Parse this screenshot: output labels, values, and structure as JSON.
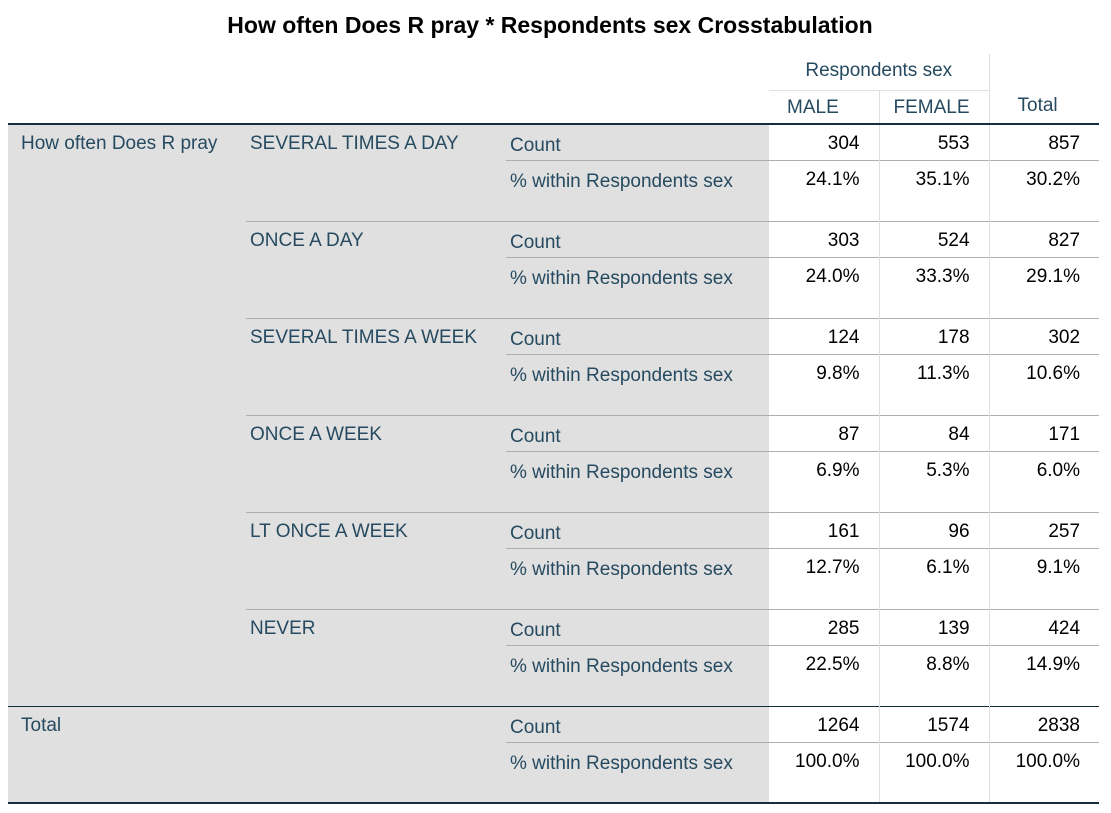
{
  "title": "How often Does R pray * Respondents sex Crosstabulation",
  "header": {
    "group_label": "Respondents sex",
    "columns": [
      "MALE",
      "FEMALE"
    ],
    "total_label": "Total"
  },
  "row_variable": "How often Does R pray",
  "stat_labels": {
    "count": "Count",
    "pct": "% within Respondents sex"
  },
  "categories": [
    {
      "label": "SEVERAL TIMES A DAY",
      "count": [
        "304",
        "553",
        "857"
      ],
      "pct": [
        "24.1%",
        "35.1%",
        "30.2%"
      ]
    },
    {
      "label": "ONCE A DAY",
      "count": [
        "303",
        "524",
        "827"
      ],
      "pct": [
        "24.0%",
        "33.3%",
        "29.1%"
      ]
    },
    {
      "label": "SEVERAL TIMES A WEEK",
      "count": [
        "124",
        "178",
        "302"
      ],
      "pct": [
        "9.8%",
        "11.3%",
        "10.6%"
      ]
    },
    {
      "label": "ONCE A WEEK",
      "count": [
        "87",
        "84",
        "171"
      ],
      "pct": [
        "6.9%",
        "5.3%",
        "6.0%"
      ]
    },
    {
      "label": "LT ONCE A WEEK",
      "count": [
        "161",
        "96",
        "257"
      ],
      "pct": [
        "12.7%",
        "6.1%",
        "9.1%"
      ]
    },
    {
      "label": "NEVER",
      "count": [
        "285",
        "139",
        "424"
      ],
      "pct": [
        "22.5%",
        "8.8%",
        "14.9%"
      ]
    }
  ],
  "total": {
    "label": "Total",
    "count": [
      "1264",
      "1574",
      "2838"
    ],
    "pct": [
      "100.0%",
      "100.0%",
      "100.0%"
    ]
  }
}
